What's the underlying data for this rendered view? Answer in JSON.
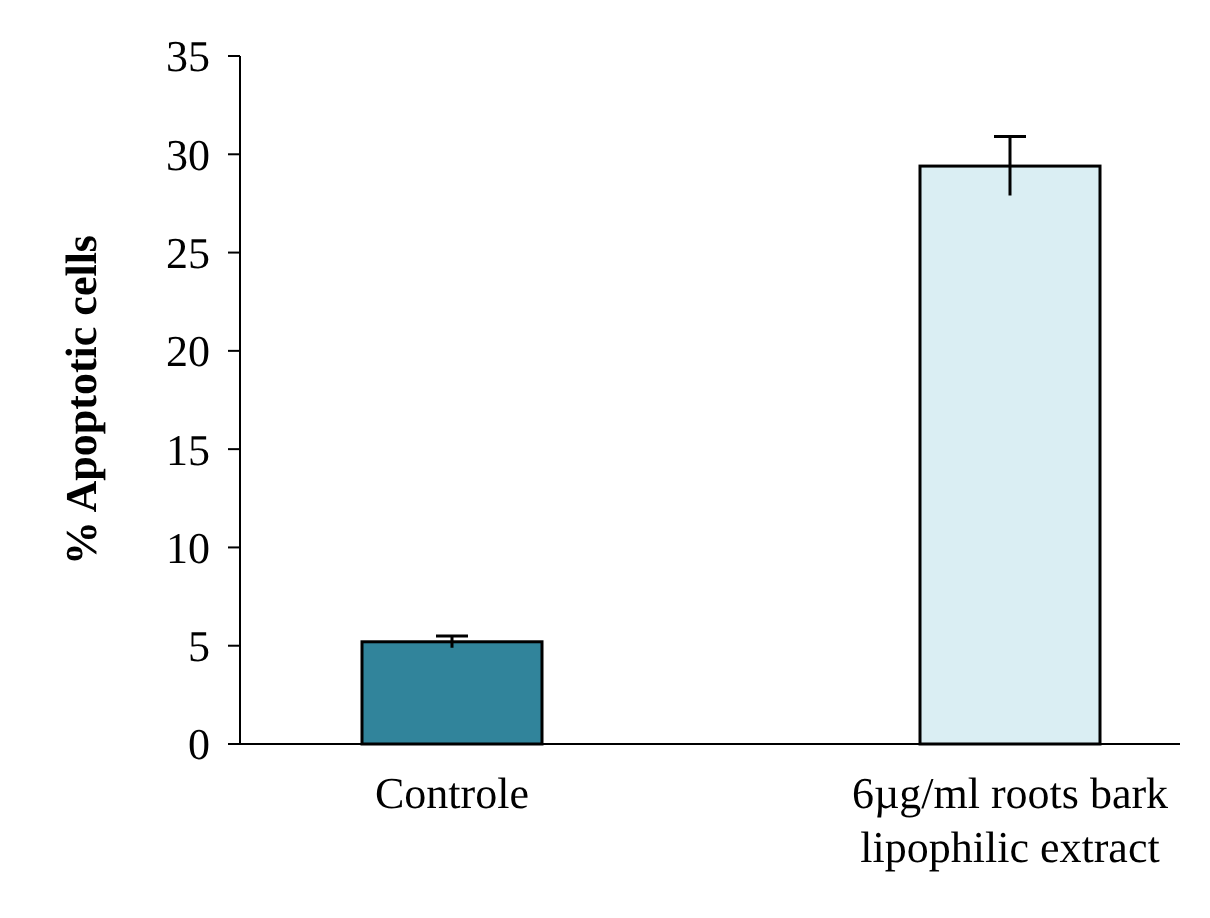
{
  "chart_data": {
    "type": "bar",
    "ylabel": "% Apoptotic cells",
    "categories": [
      "Controle",
      "6µg/ml roots bark lipophilic extract"
    ],
    "values": [
      5.2,
      29.4
    ],
    "colors": [
      "#31849b",
      "#daeef3"
    ],
    "errors": [
      0.3,
      1.5
    ],
    "ylim": [
      0,
      35
    ],
    "yticks": [
      0,
      5,
      10,
      15,
      20,
      25,
      30,
      35
    ],
    "grid": false
  }
}
